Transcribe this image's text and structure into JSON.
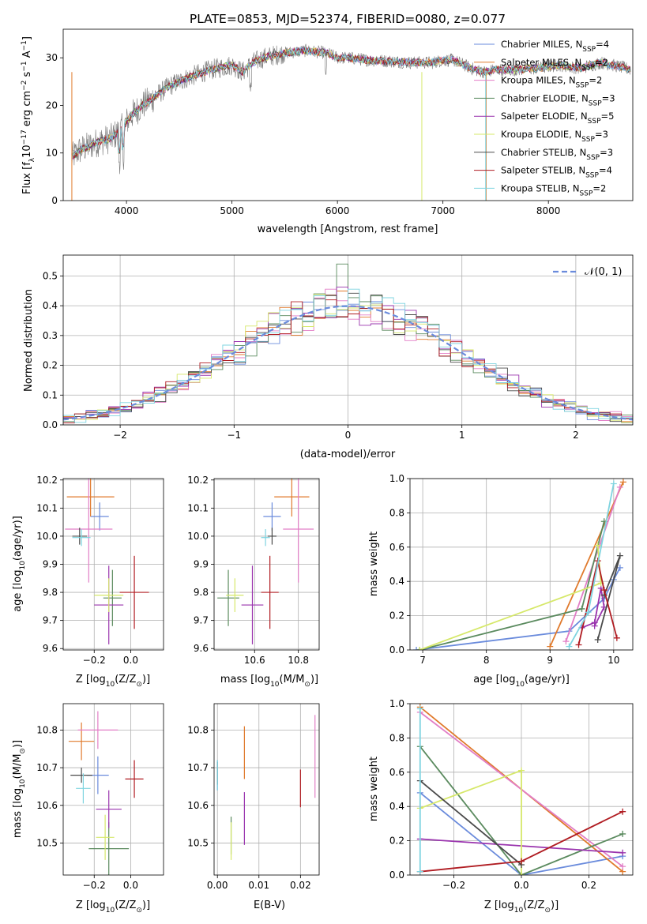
{
  "figure": {
    "title": "PLATE=0853, MJD=52374, FIBERID=0080, z=0.077"
  },
  "model_colors": [
    "#6a8bdc",
    "#e07a2c",
    "#e27ec6",
    "#5a8a5e",
    "#9a34ae",
    "#d6e86a",
    "#4a4a4a",
    "#b01c22",
    "#7fd4e0"
  ],
  "chart_data": [
    {
      "id": "spectrum",
      "type": "line",
      "xlabel": "wavelength [Angstrom, rest frame]",
      "ylabel": "Flux [f_λ 10^-17 erg cm^-2 s^-1 A^-1]",
      "xlim": [
        3400,
        8800
      ],
      "ylim": [
        0,
        36
      ],
      "xticks": [
        4000,
        5000,
        6000,
        7000,
        8000
      ],
      "yticks": [
        0,
        10,
        20,
        30
      ],
      "grid": false,
      "legend_position": "right",
      "data_color": "#777777",
      "continuum": {
        "x": [
          3480,
          3550,
          3650,
          3750,
          3850,
          3950,
          4050,
          4150,
          4250,
          4400,
          4600,
          4800,
          5000,
          5100,
          5200,
          5300,
          5500,
          5700,
          5900,
          6000,
          6100,
          6300,
          6500,
          6700,
          6900,
          7000,
          7100,
          7200,
          7300,
          7400,
          7500,
          7700,
          7900,
          8100,
          8300,
          8500,
          8700,
          8780
        ],
        "y": [
          9,
          10.5,
          11.5,
          12.5,
          13,
          15,
          18,
          20,
          21.5,
          24,
          26,
          27.5,
          28.5,
          27,
          29,
          30,
          31,
          31.5,
          31,
          30,
          30,
          29.5,
          29.3,
          29,
          29,
          29.5,
          29.5,
          28.5,
          27.5,
          27,
          27.5,
          27.5,
          27.8,
          28.5,
          27.8,
          29,
          28,
          27.5
        ]
      },
      "series": [
        {
          "name": "Chabrier MILES",
          "nssp": "4"
        },
        {
          "name": "Salpeter MILES",
          "nssp": "2"
        },
        {
          "name": "Kroupa MILES",
          "nssp": "2"
        },
        {
          "name": "Chabrier ELODIE",
          "nssp": "3"
        },
        {
          "name": "Salpeter ELODIE",
          "nssp": "5"
        },
        {
          "name": "Kroupa ELODIE",
          "nssp": "3"
        },
        {
          "name": "Chabrier STELIB",
          "nssp": "3"
        },
        {
          "name": "Salpeter STELIB",
          "nssp": "4"
        },
        {
          "name": "Kroupa STELIB",
          "nssp": "2"
        }
      ]
    },
    {
      "id": "residuals",
      "type": "histogram",
      "xlabel": "(data-model)/error",
      "ylabel": "Normed distribution",
      "xlim": [
        -2.5,
        2.5
      ],
      "ylim": [
        0,
        0.57
      ],
      "xticks": [
        -2,
        -1,
        0,
        1,
        2
      ],
      "yticks": [
        0.0,
        0.1,
        0.2,
        0.3,
        0.4,
        0.5
      ],
      "grid": true,
      "legend_position": "top-right",
      "reference_label": "N(0,1)",
      "bin_width": 0.1,
      "reference_curve": "normal(0,1)"
    },
    {
      "id": "age_vs_Z",
      "type": "scatter",
      "xlabel": "Z [log10(Z/Z⊙)]",
      "ylabel": "age  [log10(age/yr)]",
      "xlim": [
        -0.37,
        0.18
      ],
      "ylim": [
        9.595,
        10.205
      ],
      "xticks": [
        -0.2,
        0.0
      ],
      "yticks": [
        9.6,
        9.7,
        9.8,
        9.9,
        10.0,
        10.1,
        10.2
      ],
      "grid": true,
      "points": [
        {
          "x": -0.17,
          "xerr": 0.05,
          "y": 10.07,
          "yerr": 0.05
        },
        {
          "x": -0.22,
          "xerr": 0.13,
          "y": 10.14,
          "yerr": 0.07
        },
        {
          "x": -0.23,
          "xerr": 0.13,
          "y": 10.025,
          "yerr": 0.19
        },
        {
          "x": -0.1,
          "xerr": 0.05,
          "y": 9.78,
          "yerr": 0.1
        },
        {
          "x": -0.12,
          "xerr": 0.08,
          "y": 9.755,
          "yerr": 0.14
        },
        {
          "x": -0.12,
          "xerr": 0.08,
          "y": 9.79,
          "yerr": 0.06
        },
        {
          "x": -0.28,
          "xerr": 0.04,
          "y": 10.0,
          "yerr": 0.03
        },
        {
          "x": 0.02,
          "xerr": 0.08,
          "y": 9.8,
          "yerr": 0.13
        },
        {
          "x": -0.27,
          "xerr": 0.05,
          "y": 9.995,
          "yerr": 0.03
        }
      ]
    },
    {
      "id": "age_vs_mass",
      "type": "scatter",
      "xlabel": "mass [log10(M/M⊙)]",
      "ylabel": "",
      "xlim": [
        10.415,
        10.895
      ],
      "ylim": [
        9.595,
        10.205
      ],
      "xticks": [
        10.6,
        10.8
      ],
      "yticks": [
        9.6,
        9.7,
        9.8,
        9.9,
        10.0,
        10.1,
        10.2
      ],
      "grid": true,
      "points": [
        {
          "x": 10.68,
          "xerr": 0.04,
          "y": 10.07,
          "yerr": 0.05
        },
        {
          "x": 10.77,
          "xerr": 0.08,
          "y": 10.14,
          "yerr": 0.07
        },
        {
          "x": 10.8,
          "xerr": 0.07,
          "y": 10.025,
          "yerr": 0.19
        },
        {
          "x": 10.48,
          "xerr": 0.05,
          "y": 9.78,
          "yerr": 0.1
        },
        {
          "x": 10.59,
          "xerr": 0.05,
          "y": 9.755,
          "yerr": 0.14
        },
        {
          "x": 10.51,
          "xerr": 0.04,
          "y": 9.79,
          "yerr": 0.06
        },
        {
          "x": 10.68,
          "xerr": 0.02,
          "y": 10.0,
          "yerr": 0.03
        },
        {
          "x": 10.67,
          "xerr": 0.04,
          "y": 9.8,
          "yerr": 0.13
        },
        {
          "x": 10.65,
          "xerr": 0.02,
          "y": 9.995,
          "yerr": 0.03
        }
      ]
    },
    {
      "id": "weight_vs_age",
      "type": "line",
      "xlabel": "age  [log10(age/yr)]",
      "ylabel": "mass weight",
      "xlim": [
        6.8,
        10.3
      ],
      "ylim": [
        0,
        1
      ],
      "xticks": [
        7,
        8,
        9,
        10
      ],
      "yticks": [
        0.0,
        0.2,
        0.4,
        0.6,
        0.8,
        1.0
      ],
      "grid": true,
      "series": [
        {
          "x": [
            6.9,
            9.3,
            9.85,
            10.0,
            10.1
          ],
          "y": [
            0.0,
            0.11,
            0.3,
            0.41,
            0.48
          ]
        },
        {
          "x": [
            9.0,
            10.15
          ],
          "y": [
            0.02,
            0.98
          ]
        },
        {
          "x": [
            9.25,
            10.1
          ],
          "y": [
            0.05,
            0.95
          ]
        },
        {
          "x": [
            6.95,
            9.5,
            9.85
          ],
          "y": [
            0.0,
            0.24,
            0.75
          ]
        },
        {
          "x": [
            9.5,
            9.7,
            9.8,
            9.85,
            9.7
          ],
          "y": [
            0.13,
            0.16,
            0.36,
            0.25,
            0.14
          ]
        },
        {
          "x": [
            6.95,
            9.8,
            9.75
          ],
          "y": [
            0.0,
            0.39,
            0.61
          ]
        },
        {
          "x": [
            9.75,
            10.1,
            9.85
          ],
          "y": [
            0.06,
            0.55,
            0.32
          ]
        },
        {
          "x": [
            9.45,
            9.75,
            9.85,
            10.05
          ],
          "y": [
            0.03,
            0.52,
            0.35,
            0.07
          ]
        },
        {
          "x": [
            9.3,
            9.6,
            10.0
          ],
          "y": [
            0.02,
            0.22,
            0.97
          ]
        }
      ]
    },
    {
      "id": "mass_vs_Z",
      "type": "scatter",
      "xlabel": "Z [log10(Z/Z⊙)]",
      "ylabel": "mass [log10(M/M⊙)]",
      "xlim": [
        -0.37,
        0.18
      ],
      "ylim": [
        10.415,
        10.87
      ],
      "xticks": [
        -0.2,
        0.0
      ],
      "yticks": [
        10.5,
        10.6,
        10.7,
        10.8
      ],
      "grid": true,
      "points": [
        {
          "x": -0.18,
          "xerr": 0.06,
          "y": 10.68,
          "yerr": 0.05
        },
        {
          "x": -0.27,
          "xerr": 0.07,
          "y": 10.77,
          "yerr": 0.05
        },
        {
          "x": -0.18,
          "xerr": 0.11,
          "y": 10.8,
          "yerr": 0.05
        },
        {
          "x": -0.12,
          "xerr": 0.11,
          "y": 10.485,
          "yerr": 0.07
        },
        {
          "x": -0.12,
          "xerr": 0.07,
          "y": 10.59,
          "yerr": 0.05
        },
        {
          "x": -0.14,
          "xerr": 0.05,
          "y": 10.515,
          "yerr": 0.06
        },
        {
          "x": -0.27,
          "xerr": 0.06,
          "y": 10.68,
          "yerr": 0.02
        },
        {
          "x": 0.02,
          "xerr": 0.05,
          "y": 10.67,
          "yerr": 0.05
        },
        {
          "x": -0.26,
          "xerr": 0.04,
          "y": 10.645,
          "yerr": 0.04
        }
      ]
    },
    {
      "id": "mass_vs_EBV",
      "type": "scatter",
      "xlabel": "E(B-V)",
      "ylabel": "",
      "xlim": [
        -0.0008,
        0.0245
      ],
      "ylim": [
        10.415,
        10.87
      ],
      "xticks": [
        0.0,
        0.01,
        0.02
      ],
      "yticks": [
        10.5,
        10.6,
        10.7,
        10.8
      ],
      "grid": true,
      "points": [
        {
          "x": 0.0,
          "y": 10.68,
          "yerr": 0.04
        },
        {
          "x": 0.0065,
          "y": 10.74,
          "yerr": 0.07
        },
        {
          "x": 0.0235,
          "y": 10.73,
          "yerr": 0.11
        },
        {
          "x": 0.0033,
          "y": 10.52,
          "yerr": 0.05
        },
        {
          "x": 0.0065,
          "y": 10.565,
          "yerr": 0.07
        },
        {
          "x": 0.0033,
          "y": 10.505,
          "yerr": 0.05
        },
        {
          "x": 0.0,
          "y": 10.685,
          "yerr": 0.03
        },
        {
          "x": 0.02,
          "y": 10.645,
          "yerr": 0.05
        },
        {
          "x": 0.0,
          "y": 10.68,
          "yerr": 0.04
        }
      ]
    },
    {
      "id": "weight_vs_Z",
      "type": "line",
      "xlabel": "Z [log10(Z/Z⊙)]",
      "ylabel": "mass weight",
      "xlim": [
        -0.33,
        0.33
      ],
      "ylim": [
        0,
        1
      ],
      "xticks": [
        -0.2,
        0.0,
        0.2
      ],
      "yticks": [
        0.0,
        0.2,
        0.4,
        0.6,
        0.8,
        1.0
      ],
      "grid": true,
      "series": [
        {
          "x": [
            -0.3,
            0.0,
            0.3
          ],
          "y": [
            0.48,
            0.0,
            0.11
          ]
        },
        {
          "x": [
            -0.3,
            0.3
          ],
          "y": [
            0.98,
            0.02
          ]
        },
        {
          "x": [
            -0.3,
            0.3
          ],
          "y": [
            0.95,
            0.05
          ]
        },
        {
          "x": [
            -0.3,
            0.0,
            0.3
          ],
          "y": [
            0.75,
            0.0,
            0.24
          ]
        },
        {
          "x": [
            -0.3,
            0.3
          ],
          "y": [
            0.21,
            0.13
          ]
        },
        {
          "x": [
            -0.3,
            0.0,
            0.0
          ],
          "y": [
            0.39,
            0.61,
            0.0
          ]
        },
        {
          "x": [
            -0.3,
            0.0
          ],
          "y": [
            0.55,
            0.06
          ]
        },
        {
          "x": [
            -0.3,
            0.0,
            0.3
          ],
          "y": [
            0.02,
            0.08,
            0.37
          ]
        },
        {
          "x": [
            -0.3,
            -0.3
          ],
          "y": [
            0.02,
            0.97
          ]
        }
      ]
    }
  ]
}
